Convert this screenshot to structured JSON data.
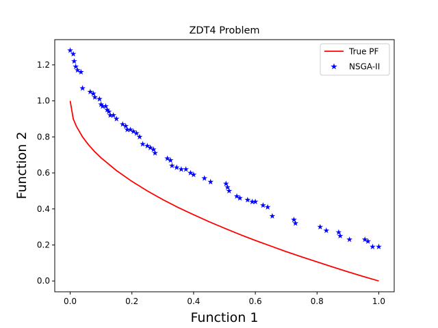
{
  "chart_data": {
    "type": "scatter",
    "title": "ZDT4 Problem",
    "xlabel": "Function 1",
    "ylabel": "Function 2",
    "xlim": [
      -0.05,
      1.05
    ],
    "ylim": [
      -0.06,
      1.34
    ],
    "xticks": [
      "0.0",
      "0.2",
      "0.4",
      "0.6",
      "0.8",
      "1.0"
    ],
    "yticks": [
      "0.0",
      "0.2",
      "0.4",
      "0.6",
      "0.8",
      "1.0",
      "1.2"
    ],
    "legend_position": "top-right",
    "grid": false,
    "series": [
      {
        "name": "True PF",
        "kind": "line",
        "color": "#ff0000",
        "x": [
          0.0,
          0.01,
          0.02,
          0.04,
          0.06,
          0.08,
          0.1,
          0.15,
          0.2,
          0.25,
          0.3,
          0.35,
          0.4,
          0.45,
          0.5,
          0.55,
          0.6,
          0.65,
          0.7,
          0.75,
          0.8,
          0.85,
          0.9,
          0.95,
          1.0
        ],
        "y": [
          1.0,
          0.9,
          0.859,
          0.8,
          0.755,
          0.717,
          0.684,
          0.613,
          0.553,
          0.5,
          0.452,
          0.408,
          0.368,
          0.329,
          0.293,
          0.258,
          0.225,
          0.194,
          0.163,
          0.134,
          0.106,
          0.078,
          0.051,
          0.025,
          0.0
        ]
      },
      {
        "name": "NSGA-II",
        "kind": "scatter",
        "marker": "star",
        "color": "#0000ff",
        "x": [
          0.0,
          0.01,
          0.013,
          0.018,
          0.024,
          0.035,
          0.04,
          0.065,
          0.075,
          0.08,
          0.095,
          0.1,
          0.105,
          0.115,
          0.12,
          0.125,
          0.13,
          0.14,
          0.15,
          0.17,
          0.18,
          0.185,
          0.195,
          0.205,
          0.215,
          0.225,
          0.235,
          0.25,
          0.26,
          0.27,
          0.275,
          0.315,
          0.325,
          0.33,
          0.345,
          0.36,
          0.375,
          0.39,
          0.4,
          0.435,
          0.455,
          0.505,
          0.51,
          0.515,
          0.54,
          0.55,
          0.575,
          0.59,
          0.6,
          0.625,
          0.64,
          0.655,
          0.725,
          0.73,
          0.81,
          0.83,
          0.87,
          0.875,
          0.905,
          0.955,
          0.965,
          0.98,
          1.0
        ],
        "y": [
          1.28,
          1.26,
          1.22,
          1.19,
          1.17,
          1.16,
          1.07,
          1.05,
          1.04,
          1.02,
          1.01,
          0.98,
          0.97,
          0.97,
          0.95,
          0.94,
          0.92,
          0.92,
          0.9,
          0.87,
          0.86,
          0.84,
          0.84,
          0.83,
          0.82,
          0.8,
          0.76,
          0.75,
          0.74,
          0.73,
          0.71,
          0.68,
          0.67,
          0.64,
          0.63,
          0.62,
          0.62,
          0.6,
          0.59,
          0.57,
          0.55,
          0.54,
          0.52,
          0.5,
          0.47,
          0.46,
          0.45,
          0.44,
          0.44,
          0.42,
          0.41,
          0.36,
          0.34,
          0.32,
          0.3,
          0.28,
          0.27,
          0.25,
          0.23,
          0.23,
          0.22,
          0.19,
          0.19
        ]
      }
    ]
  }
}
